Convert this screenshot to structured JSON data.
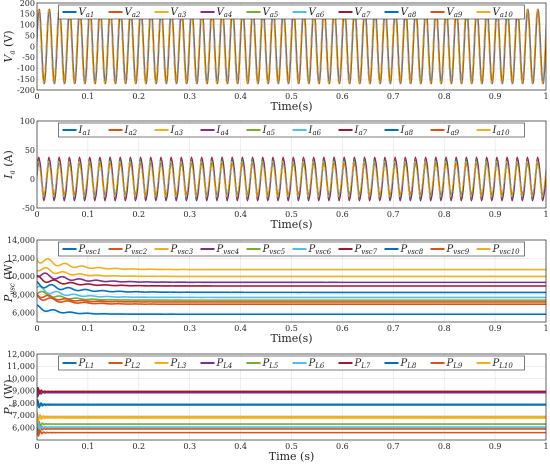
{
  "chart_data": [
    {
      "type": "line",
      "ylabel": "V_a (V)",
      "ylabel_main": "V",
      "ylabel_sub": "a",
      "ylabel_unit": " (V)",
      "xlabel": "Time(s)",
      "xlim": [
        0,
        1
      ],
      "ylim": [
        -200,
        200
      ],
      "xticks": [
        "0",
        "0.1",
        "0.2",
        "0.3",
        "0.4",
        "0.5",
        "0.6",
        "0.7",
        "0.8",
        "0.9",
        "1"
      ],
      "yticks": [
        "-200",
        "-150",
        "-100",
        "-50",
        "0",
        "50",
        "100",
        "150",
        "200"
      ],
      "grid": true,
      "legend_position": "top",
      "waveform": {
        "kind": "sinusoid",
        "frequency_hz": 50,
        "amplitude": 170
      },
      "series": [
        {
          "name": "V_a1",
          "label_main": "V",
          "label_sub": "a1",
          "color": "#0072BD"
        },
        {
          "name": "V_a2",
          "label_main": "V",
          "label_sub": "a2",
          "color": "#D95319"
        },
        {
          "name": "V_a3",
          "label_main": "V",
          "label_sub": "a3",
          "color": "#EDB120"
        },
        {
          "name": "V_a4",
          "label_main": "V",
          "label_sub": "a4",
          "color": "#7E2F8E"
        },
        {
          "name": "V_a5",
          "label_main": "V",
          "label_sub": "a5",
          "color": "#77AC30"
        },
        {
          "name": "V_a6",
          "label_main": "V",
          "label_sub": "a6",
          "color": "#4DBEEE"
        },
        {
          "name": "V_a7",
          "label_main": "V",
          "label_sub": "a7",
          "color": "#A2142F"
        },
        {
          "name": "V_a8",
          "label_main": "V",
          "label_sub": "a8",
          "color": "#0072BD"
        },
        {
          "name": "V_a9",
          "label_main": "V",
          "label_sub": "a9",
          "color": "#D95319"
        },
        {
          "name": "V_a10",
          "label_main": "V",
          "label_sub": "a10",
          "color": "#EDB120",
          "amplitude": 170
        }
      ]
    },
    {
      "type": "line",
      "ylabel": "I_a (A)",
      "ylabel_main": "I",
      "ylabel_sub": "a",
      "ylabel_unit": " (A)",
      "xlabel": "Time(s)",
      "xlim": [
        0,
        1
      ],
      "ylim": [
        -50,
        100
      ],
      "xticks": [
        "0",
        "0.1",
        "0.2",
        "0.3",
        "0.4",
        "0.5",
        "0.6",
        "0.7",
        "0.8",
        "0.9",
        "1"
      ],
      "yticks": [
        "-50",
        "0",
        "50",
        "100"
      ],
      "grid": true,
      "legend_position": "top",
      "waveform": {
        "kind": "sinusoid",
        "frequency_hz": 50
      },
      "series": [
        {
          "name": "I_a1",
          "label_main": "I",
          "label_sub": "a1",
          "color": "#0072BD",
          "amplitude": 32
        },
        {
          "name": "I_a2",
          "label_main": "I",
          "label_sub": "a2",
          "color": "#D95319",
          "amplitude": 28
        },
        {
          "name": "I_a3",
          "label_main": "I",
          "label_sub": "a3",
          "color": "#EDB120",
          "amplitude": 30
        },
        {
          "name": "I_a4",
          "label_main": "I",
          "label_sub": "a4",
          "color": "#7E2F8E",
          "amplitude": 36
        },
        {
          "name": "I_a5",
          "label_main": "I",
          "label_sub": "a5",
          "color": "#77AC30",
          "amplitude": 26
        },
        {
          "name": "I_a6",
          "label_main": "I",
          "label_sub": "a6",
          "color": "#4DBEEE",
          "amplitude": 29
        },
        {
          "name": "I_a7",
          "label_main": "I",
          "label_sub": "a7",
          "color": "#A2142F",
          "amplitude": 38
        },
        {
          "name": "I_a8",
          "label_main": "I",
          "label_sub": "a8",
          "color": "#0072BD",
          "amplitude": 33
        },
        {
          "name": "I_a9",
          "label_main": "I",
          "label_sub": "a9",
          "color": "#D95319",
          "amplitude": 27
        },
        {
          "name": "I_a10",
          "label_main": "I",
          "label_sub": "a10",
          "color": "#EDB120",
          "amplitude": 31
        }
      ]
    },
    {
      "type": "line",
      "ylabel": "P_vsc (W)",
      "ylabel_main": "P",
      "ylabel_sub": "vsc",
      "ylabel_unit": " (W)",
      "xlabel": "Time(s)",
      "xlim": [
        0,
        1
      ],
      "ylim": [
        5000,
        14000
      ],
      "xticks": [
        "0",
        "0.1",
        "0.2",
        "0.3",
        "0.4",
        "0.5",
        "0.6",
        "0.7",
        "0.8",
        "0.9",
        "1"
      ],
      "yticks": [
        "6,000",
        "8,000",
        "10,000",
        "12,000",
        "14,000"
      ],
      "grid": true,
      "legend_position": "top",
      "series": [
        {
          "name": "P_vsc1",
          "label_main": "P",
          "label_sub": "vsc1",
          "color": "#0072BD",
          "start": 6600,
          "final": 5850
        },
        {
          "name": "P_vsc2",
          "label_main": "P",
          "label_sub": "vsc2",
          "color": "#D95319",
          "start": 7800,
          "final": 6950
        },
        {
          "name": "P_vsc3",
          "label_main": "P",
          "label_sub": "vsc3",
          "color": "#EDB120",
          "start": 12000,
          "final": 10750
        },
        {
          "name": "P_vsc4",
          "label_main": "P",
          "label_sub": "vsc4",
          "color": "#7E2F8E",
          "start": 10300,
          "final": 9350
        },
        {
          "name": "P_vsc5",
          "label_main": "P",
          "label_sub": "vsc5",
          "color": "#77AC30",
          "start": 8300,
          "final": 7400
        },
        {
          "name": "P_vsc6",
          "label_main": "P",
          "label_sub": "vsc6",
          "color": "#4DBEEE",
          "start": 8700,
          "final": 7700
        },
        {
          "name": "P_vsc7",
          "label_main": "P",
          "label_sub": "vsc7",
          "color": "#A2142F",
          "start": 9800,
          "final": 8950
        },
        {
          "name": "P_vsc8",
          "label_main": "P",
          "label_sub": "vsc8",
          "color": "#0072BD",
          "start": 9200,
          "final": 8250
        },
        {
          "name": "P_vsc9",
          "label_main": "P",
          "label_sub": "vsc9",
          "color": "#D95319",
          "start": 8100,
          "final": 7200
        },
        {
          "name": "P_vsc10",
          "label_main": "P",
          "label_sub": "vsc10",
          "color": "#EDB120",
          "start": 11000,
          "final": 10000
        }
      ]
    },
    {
      "type": "line",
      "ylabel": "P_L (W)",
      "ylabel_main": "P",
      "ylabel_sub": "L",
      "ylabel_unit": " (W)",
      "xlabel": "Time (s)",
      "xlim": [
        0,
        1
      ],
      "ylim": [
        5000,
        12000
      ],
      "xticks": [
        "0",
        "0.1",
        "0.2",
        "0.3",
        "0.4",
        "0.5",
        "0.6",
        "0.7",
        "0.8",
        "0.9",
        "1"
      ],
      "yticks": [
        "6,000",
        "7,000",
        "8,000",
        "9,000",
        "10,000",
        "11,000",
        "12,000"
      ],
      "grid": true,
      "legend_position": "top",
      "series": [
        {
          "name": "P_L1",
          "label_main": "P",
          "label_sub": "L1",
          "color": "#0072BD",
          "value": 7900
        },
        {
          "name": "P_L2",
          "label_main": "P",
          "label_sub": "L2",
          "color": "#D95319",
          "value": 5900
        },
        {
          "name": "P_L3",
          "label_main": "P",
          "label_sub": "L3",
          "color": "#EDB120",
          "value": 6900
        },
        {
          "name": "P_L4",
          "label_main": "P",
          "label_sub": "L4",
          "color": "#7E2F8E",
          "value": 8850
        },
        {
          "name": "P_L5",
          "label_main": "P",
          "label_sub": "L5",
          "color": "#77AC30",
          "value": 6300
        },
        {
          "name": "P_L6",
          "label_main": "P",
          "label_sub": "L6",
          "color": "#4DBEEE",
          "value": 6050
        },
        {
          "name": "P_L7",
          "label_main": "P",
          "label_sub": "L7",
          "color": "#A2142F",
          "value": 8950
        },
        {
          "name": "P_L8",
          "label_main": "P",
          "label_sub": "L8",
          "color": "#0072BD",
          "value": 7850
        },
        {
          "name": "P_L9",
          "label_main": "P",
          "label_sub": "L9",
          "color": "#D95319",
          "value": 5600
        },
        {
          "name": "P_L10",
          "label_main": "P",
          "label_sub": "L10",
          "color": "#EDB120",
          "value": 6800
        }
      ]
    }
  ]
}
